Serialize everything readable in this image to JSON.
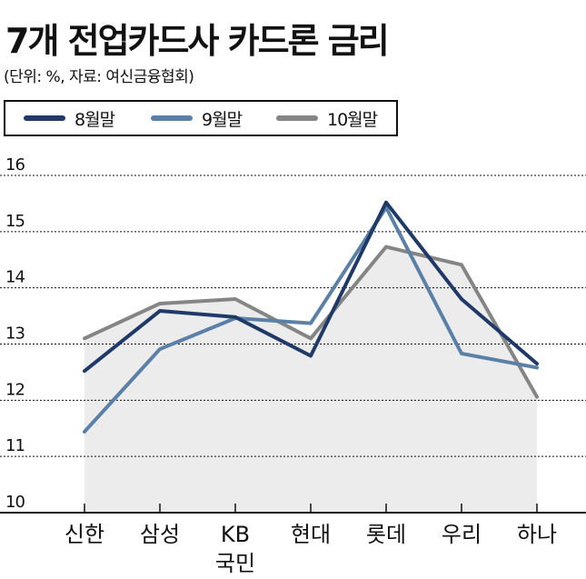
{
  "header": {
    "title": "7개 전업카드사 카드론 금리",
    "subtitle": "(단위: %, 자료: 여신금융협회)"
  },
  "legend": [
    "8월말",
    "9월말",
    "10월말"
  ],
  "colors": {
    "aug": "#1f3a68",
    "sep": "#5b80a8",
    "oct": "#858585",
    "area": "#ececec",
    "grid": "#111111"
  },
  "chart_data": {
    "type": "line",
    "title": "7개 전업카드사 카드론 금리",
    "subtitle": "(단위: %, 자료: 여신금융협회)",
    "categories": [
      "신한",
      "삼성",
      "KB\n국민",
      "현대",
      "롯데",
      "우리",
      "하나"
    ],
    "series": [
      {
        "name": "8월말",
        "values": [
          12.52,
          13.59,
          13.48,
          12.79,
          15.52,
          13.8,
          12.65
        ]
      },
      {
        "name": "9월말",
        "values": [
          11.44,
          12.91,
          13.46,
          13.37,
          15.43,
          12.83,
          12.58
        ]
      },
      {
        "name": "10월말",
        "values": [
          13.1,
          13.72,
          13.8,
          13.1,
          14.73,
          14.41,
          12.06
        ]
      }
    ],
    "ylim": [
      10,
      16
    ],
    "yticks": [
      10,
      11,
      12,
      13,
      14,
      15,
      16
    ],
    "grid": true,
    "legend_position": "top-left"
  }
}
